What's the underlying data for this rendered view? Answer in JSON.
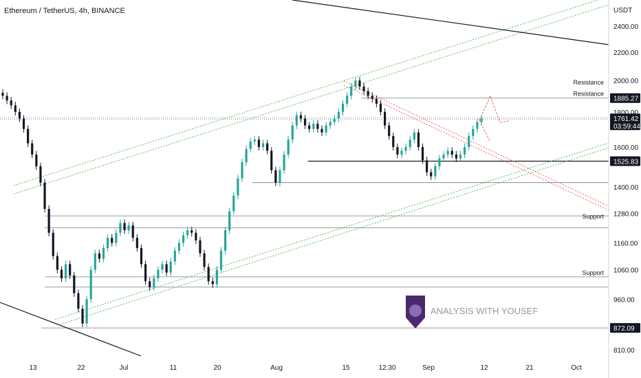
{
  "header": {
    "title": "Ethereum / TetherUS, 4h, BINANCE"
  },
  "price_axis": {
    "unit": "USDT"
  },
  "watermark": {
    "text": "ANALYSIS WITH YOUSEF"
  },
  "colors": {
    "candle_up": "#26a69a",
    "candle_down": "#131722",
    "channel": "#4caf50",
    "downtrend": "#ef5350",
    "trendline": "#131722",
    "level": "#787b86",
    "tag_bg": "#131722"
  },
  "chart_data": {
    "type": "candlestick",
    "title": "Ethereum / TetherUS, 4h, BINANCE",
    "yaxis": {
      "unit": "USDT",
      "scale": "log",
      "ticks": [
        810,
        960,
        1060,
        1160,
        1280,
        1400,
        1600,
        1800,
        2000,
        2200,
        2400
      ],
      "tick_labels": [
        "810.00",
        "960.00",
        "1060.00",
        "1160.00",
        "1280.00",
        "1400.00",
        "1600.00",
        "1800.00",
        "2000.00",
        "2200.00",
        "2400.00"
      ],
      "range": [
        790,
        2620
      ]
    },
    "xaxis": {
      "tick_labels": [
        "13",
        "22",
        "Jul",
        "11",
        "20",
        "Aug",
        "15",
        "12:30",
        "Sep",
        "12",
        "21",
        "Oct"
      ]
    },
    "price_tags": [
      {
        "label": "1885.27",
        "value": 1885.27
      },
      {
        "label": "1761.42",
        "value": 1761.42,
        "sub": "03:59:44",
        "current": true
      },
      {
        "label": "1525.83",
        "value": 1525.83
      },
      {
        "label": "872.09",
        "value": 872.09
      }
    ],
    "annotations": [
      {
        "text": "Resistance",
        "value": 1960
      },
      {
        "text": "Resistance",
        "value": 1885.27
      },
      {
        "text": "Support",
        "value": 1250
      },
      {
        "text": "Support",
        "value": 1035
      }
    ],
    "horizontal_levels": [
      1885.27,
      1765,
      1755,
      1525.83,
      1420,
      1270,
      1220,
      1035,
      1000,
      872.09
    ],
    "series": [
      {
        "name": "",
        "close": [
          1900,
          1870,
          1840,
          1800,
          1760,
          1700,
          1620,
          1560,
          1500,
          1420,
          1300,
          1200,
          1110,
          1060,
          1030,
          1080,
          1040,
          980,
          930,
          885,
          960,
          1060,
          1120,
          1100,
          1140,
          1180,
          1160,
          1200,
          1240,
          1210,
          1230,
          1180,
          1140,
          1080,
          1020,
          1000,
          1030,
          1060,
          1080,
          1050,
          1090,
          1130,
          1160,
          1190,
          1210,
          1200,
          1170,
          1120,
          1070,
          1020,
          1010,
          1060,
          1130,
          1210,
          1290,
          1360,
          1440,
          1520,
          1590,
          1630,
          1640,
          1600,
          1620,
          1580,
          1480,
          1420,
          1480,
          1560,
          1640,
          1720,
          1780,
          1760,
          1720,
          1700,
          1730,
          1700,
          1680,
          1720,
          1740,
          1760,
          1800,
          1850,
          1900,
          1960,
          2000,
          1960,
          1930,
          1900,
          1880,
          1850,
          1800,
          1720,
          1660,
          1600,
          1560,
          1580,
          1600,
          1640,
          1680,
          1600,
          1530,
          1470,
          1450,
          1500,
          1540,
          1560,
          1580,
          1560,
          1540,
          1560,
          1600,
          1660,
          1700,
          1740,
          1761.42
        ]
      }
    ]
  }
}
